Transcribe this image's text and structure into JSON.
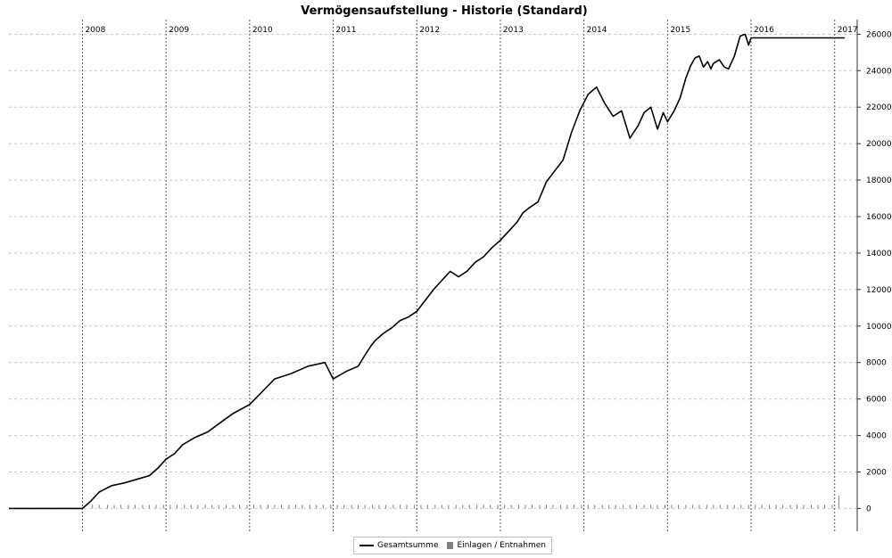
{
  "chart_data": {
    "type": "line",
    "title": "Vermögensaufstellung - Historie (Standard)",
    "ylim": [
      -1250,
      26800
    ],
    "yticks": [
      0,
      2000,
      4000,
      6000,
      8000,
      10000,
      12000,
      14000,
      16000,
      18000,
      20000,
      22000,
      24000,
      26000
    ],
    "xlim": [
      2007.12,
      2017.27
    ],
    "years": [
      "2008",
      "2009",
      "2010",
      "2011",
      "2012",
      "2013",
      "2014",
      "2015",
      "2016",
      "2017"
    ],
    "year_values": [
      2008,
      2009,
      2010,
      2011,
      2012,
      2013,
      2014,
      2015,
      2016,
      2017
    ],
    "legend_position": "bottom-center",
    "series": [
      {
        "name": "Gesamtsumme",
        "color": "#000000",
        "x": [
          2007.12,
          2008.0,
          2008.1,
          2008.2,
          2008.35,
          2008.5,
          2008.65,
          2008.8,
          2008.9,
          2009.0,
          2009.1,
          2009.2,
          2009.35,
          2009.5,
          2009.65,
          2009.8,
          2010.0,
          2010.15,
          2010.3,
          2010.5,
          2010.7,
          2010.9,
          2011.0,
          2011.15,
          2011.3,
          2011.38,
          2011.45,
          2011.5,
          2011.6,
          2011.7,
          2011.8,
          2011.9,
          2012.0,
          2012.1,
          2012.2,
          2012.3,
          2012.4,
          2012.5,
          2012.6,
          2012.7,
          2012.8,
          2012.9,
          2013.0,
          2013.1,
          2013.2,
          2013.27,
          2013.35,
          2013.45,
          2013.55,
          2013.65,
          2013.75,
          2013.85,
          2013.95,
          2014.05,
          2014.15,
          2014.25,
          2014.35,
          2014.45,
          2014.55,
          2014.65,
          2014.72,
          2014.8,
          2014.88,
          2014.95,
          2015.0,
          2015.08,
          2015.15,
          2015.22,
          2015.28,
          2015.33,
          2015.38,
          2015.43,
          2015.48,
          2015.52,
          2015.55,
          2015.62,
          2015.68,
          2015.73,
          2015.8,
          2015.87,
          2015.93,
          2015.97,
          2016.0,
          2016.05,
          2016.12,
          2016.2,
          2016.28,
          2016.35,
          2016.42,
          2016.48,
          2016.55,
          2016.62,
          2016.7,
          2016.75,
          2016.82,
          2016.88,
          2016.93,
          2016.97,
          2017.0,
          2017.03,
          2017.06,
          2017.08,
          2017.1,
          2017.12
        ],
        "values": [
          0,
          0,
          400,
          900,
          1250,
          1400,
          1600,
          1800,
          2200,
          2700,
          3000,
          3500,
          3900,
          4200,
          4700,
          5200,
          5700,
          6400,
          7100,
          7400,
          7800,
          8000,
          7100,
          7500,
          7800,
          8400,
          8900,
          9200,
          9600,
          9900,
          10300,
          10500,
          10800,
          11400,
          12000,
          12500,
          13000,
          12700,
          13000,
          13500,
          13800,
          14300,
          14700,
          15200,
          15700,
          16200,
          16500,
          16800,
          17900,
          18500,
          19100,
          20600,
          21800,
          22700,
          23100,
          22200,
          21500,
          21800,
          20300,
          21000,
          21700,
          22000,
          20800,
          21700,
          21200,
          21800,
          22500,
          23600,
          24300,
          24700,
          24800,
          24200,
          24500,
          24100,
          24400,
          24600,
          24200,
          24100,
          24800,
          25900,
          26000,
          25400,
          25800,
          25800,
          25800,
          25800,
          25800,
          25800,
          25800,
          25800,
          25800,
          25800,
          25800,
          25800,
          25800,
          25800,
          25800,
          25800,
          25800,
          25800,
          25800,
          25800,
          25800,
          25800
        ]
      },
      {
        "name": "Einlagen / Entnahmen",
        "type": "bar",
        "color": "#808080",
        "x": [
          2008.12,
          2008.2,
          2008.3,
          2008.38,
          2008.46,
          2008.55,
          2008.63,
          2008.72,
          2008.8,
          2008.88,
          2008.97,
          2009.05,
          2009.13,
          2009.22,
          2009.3,
          2009.38,
          2009.47,
          2009.55,
          2009.63,
          2009.72,
          2009.8,
          2009.88,
          2009.97,
          2010.05,
          2010.13,
          2010.22,
          2010.3,
          2010.38,
          2010.47,
          2010.55,
          2010.63,
          2010.72,
          2010.8,
          2010.88,
          2010.97,
          2011.05,
          2011.13,
          2011.22,
          2011.3,
          2011.38,
          2011.47,
          2011.55,
          2011.63,
          2011.72,
          2011.8,
          2011.88,
          2011.97,
          2012.05,
          2012.13,
          2012.22,
          2012.3,
          2012.38,
          2012.47,
          2012.55,
          2012.63,
          2012.72,
          2012.8,
          2012.88,
          2012.97,
          2013.05,
          2013.13,
          2013.22,
          2013.3,
          2013.38,
          2013.47,
          2013.55,
          2013.63,
          2013.72,
          2013.8,
          2013.88,
          2013.97,
          2014.05,
          2014.13,
          2014.22,
          2014.3,
          2014.38,
          2014.47,
          2014.55,
          2014.63,
          2014.72,
          2014.8,
          2014.88,
          2014.97,
          2015.05,
          2015.13,
          2015.22,
          2015.3,
          2015.38,
          2015.47,
          2015.55,
          2015.63,
          2015.72,
          2015.8,
          2015.88,
          2015.97,
          2016.05,
          2016.13,
          2016.22,
          2016.3,
          2016.38,
          2016.47,
          2016.55,
          2016.63,
          2016.72,
          2016.8,
          2016.88,
          2016.97,
          2017.05
        ],
        "values": [
          200,
          200,
          200,
          200,
          200,
          200,
          200,
          200,
          200,
          200,
          200,
          200,
          200,
          200,
          200,
          200,
          200,
          200,
          200,
          200,
          200,
          200,
          200,
          200,
          200,
          200,
          200,
          200,
          200,
          200,
          200,
          200,
          200,
          200,
          200,
          200,
          200,
          200,
          200,
          200,
          200,
          200,
          200,
          200,
          200,
          200,
          200,
          200,
          200,
          200,
          200,
          200,
          200,
          200,
          200,
          200,
          200,
          200,
          200,
          200,
          200,
          200,
          200,
          200,
          200,
          200,
          200,
          200,
          200,
          200,
          200,
          200,
          200,
          200,
          200,
          200,
          200,
          200,
          200,
          200,
          200,
          200,
          200,
          200,
          200,
          200,
          200,
          200,
          200,
          200,
          200,
          200,
          200,
          200,
          200,
          200,
          200,
          200,
          200,
          200,
          200,
          200,
          200,
          200,
          200,
          200,
          200,
          700
        ]
      }
    ]
  }
}
